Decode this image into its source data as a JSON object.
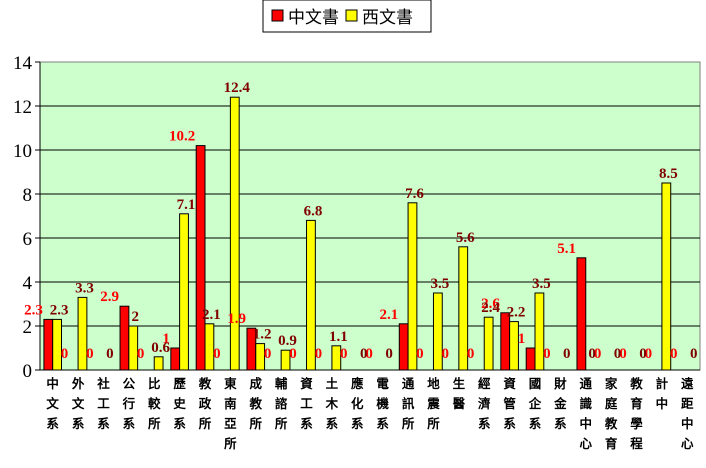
{
  "chart_data": {
    "type": "bar",
    "ylim": [
      0,
      14
    ],
    "yticks": [
      0,
      2,
      4,
      6,
      8,
      10,
      12,
      14
    ],
    "grid": "horizontal",
    "plot_background": "#ccffcc",
    "legend_position": "top",
    "categories": [
      "中文系",
      "外文系",
      "社工系",
      "公行系",
      "比較所",
      "歷史系",
      "教政所",
      "東南亞所",
      "成教所",
      "輔諮所",
      "資工系",
      "土木系",
      "應化系",
      "電機系",
      "通訊所",
      "地震所",
      "生醫",
      "經濟系",
      "資管系",
      "國企系",
      "財金系",
      "通識中心",
      "家庭教育",
      "教育學程",
      "計中",
      "遠距中心"
    ],
    "series": [
      {
        "name": "中文書",
        "color": "#ff0000",
        "label_color": "#ff0000",
        "values": [
          2.3,
          0,
          0,
          2.9,
          0,
          1,
          10.2,
          0,
          1.9,
          0,
          0,
          0,
          0,
          0,
          2.1,
          0,
          0,
          0,
          2.6,
          1,
          0,
          5.1,
          0,
          0,
          0,
          0
        ]
      },
      {
        "name": "西文書",
        "color": "#ffff00",
        "label_color": "#800000",
        "values": [
          2.3,
          3.3,
          0,
          2,
          0.6,
          7.1,
          2.1,
          12.4,
          1.2,
          0.9,
          6.8,
          1.1,
          0,
          0,
          7.6,
          3.5,
          5.6,
          2.4,
          2.2,
          3.5,
          0,
          0,
          0,
          0,
          8.5,
          0
        ]
      }
    ]
  }
}
